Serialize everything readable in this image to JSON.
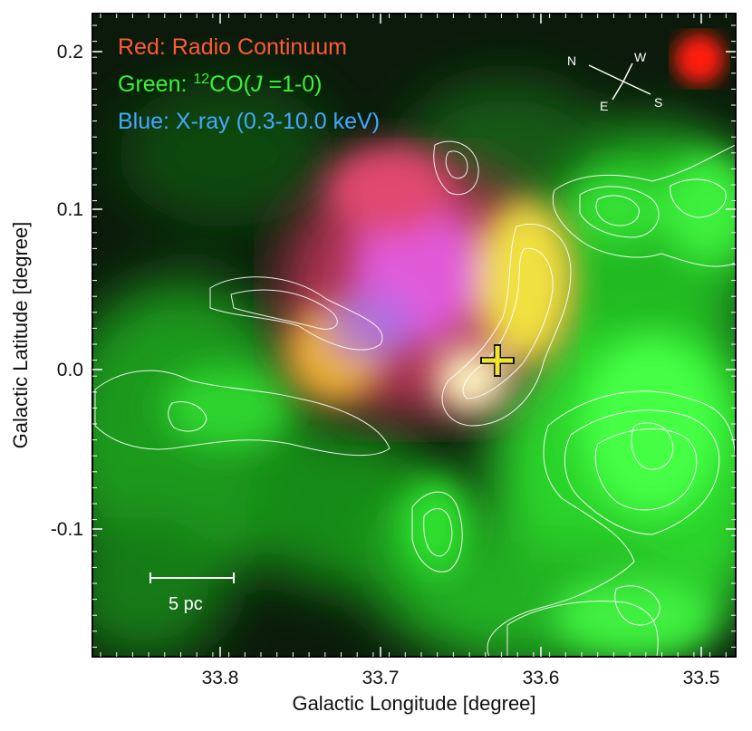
{
  "legend": {
    "red": "Red: Radio Continuum",
    "green_prefix": "Green: ",
    "green_sup": "12",
    "green_mid": "CO(",
    "green_italic": "J",
    "green_suffix": " =1-0)",
    "blue": "Blue: X-ray (0.3-10.0 keV)"
  },
  "colors": {
    "legend_red": "#ff5a36",
    "legend_green": "#3cf03a",
    "legend_blue": "#44a8ff",
    "marker": "#f2e62c"
  },
  "axes": {
    "xlabel": "Galactic Longitude [degree]",
    "ylabel": "Galactic Latitude [degree]",
    "x_ticks": [
      "33.8",
      "33.7",
      "33.6",
      "33.5"
    ],
    "y_ticks": [
      "0.2",
      "0.1",
      "0.0",
      "-0.1"
    ]
  },
  "compass": {
    "north": "N",
    "west": "W",
    "east": "E",
    "south": "S"
  },
  "scale_bar": {
    "label": "5 pc"
  }
}
